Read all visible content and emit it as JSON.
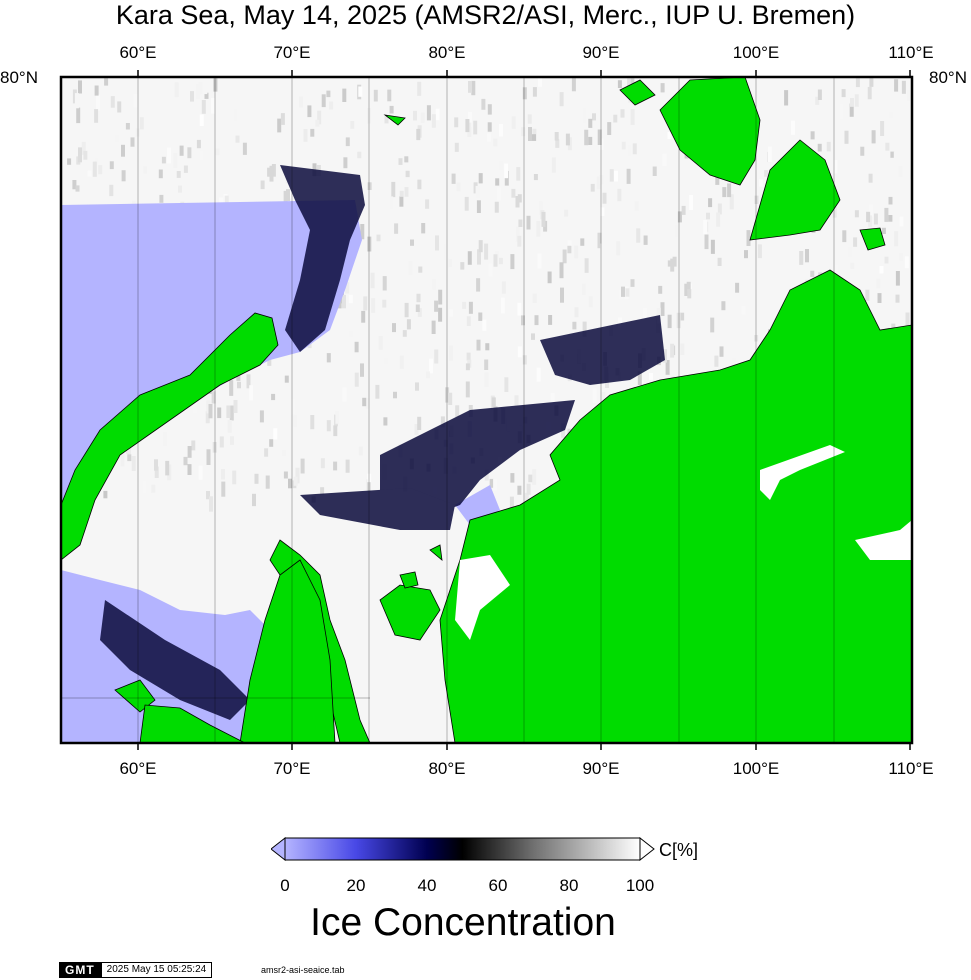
{
  "title": "Kara Sea, May 14, 2025 (AMSR2/ASI, Merc., IUP U. Bremen)",
  "lon_ticks": [
    "60°E",
    "70°E",
    "80°E",
    "90°E",
    "100°E",
    "110°E"
  ],
  "lat_ticks": [
    "80°N"
  ],
  "colorbar": {
    "ticks": [
      "0",
      "20",
      "40",
      "60",
      "80",
      "100"
    ],
    "unit": "C[%]",
    "title": "Ice Concentration",
    "stops": [
      {
        "value": 0,
        "color": "#b4b4ff"
      },
      {
        "value": 20,
        "color": "#4848e6"
      },
      {
        "value": 40,
        "color": "#000050"
      },
      {
        "value": 50,
        "color": "#000000"
      },
      {
        "value": 70,
        "color": "#707070"
      },
      {
        "value": 100,
        "color": "#ffffff"
      }
    ]
  },
  "colors": {
    "land": "#00dc00",
    "open_water": "#b4b4ff",
    "ice": "#ffffff"
  },
  "footer": {
    "logo": "GMT",
    "timestamp": "2025 May 15 05:25:24",
    "file": "amsr2-asi-seaice.tab"
  }
}
